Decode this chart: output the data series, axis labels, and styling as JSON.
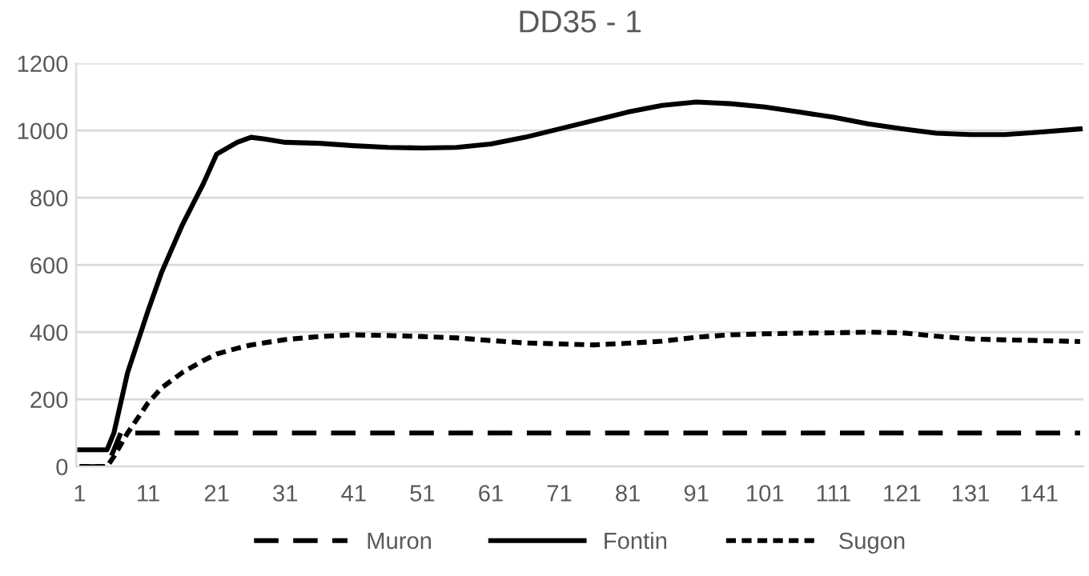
{
  "chart_data": {
    "type": "line",
    "title": "DD35 - 1",
    "xlim": [
      0.5,
      147.5
    ],
    "xticks": [
      1,
      11,
      21,
      31,
      41,
      51,
      61,
      71,
      81,
      91,
      101,
      111,
      121,
      131,
      141
    ],
    "ylim": [
      0,
      1200
    ],
    "yticks": [
      0,
      200,
      400,
      600,
      800,
      1000,
      1200
    ],
    "grid": "y",
    "legend": "bottom",
    "marker": "none",
    "series": [
      {
        "name": "Muron",
        "color": "#000000",
        "line_style": "dashed",
        "x": [
          1,
          5,
          7,
          147
        ],
        "values": [
          0,
          0,
          100,
          100
        ]
      },
      {
        "name": "Fontin",
        "color": "#000000",
        "line_style": "solid",
        "x": [
          1,
          5,
          6,
          8,
          11,
          13,
          16,
          19,
          21,
          24,
          26,
          28,
          31,
          36,
          41,
          46,
          51,
          56,
          61,
          66,
          71,
          76,
          81,
          86,
          91,
          96,
          101,
          106,
          111,
          116,
          121,
          126,
          131,
          136,
          141,
          147
        ],
        "values": [
          50,
          50,
          100,
          280,
          465,
          580,
          720,
          840,
          930,
          965,
          980,
          975,
          965,
          962,
          955,
          950,
          948,
          950,
          960,
          980,
          1005,
          1030,
          1055,
          1075,
          1085,
          1080,
          1070,
          1055,
          1040,
          1020,
          1005,
          992,
          988,
          988,
          995,
          1005
        ]
      },
      {
        "name": "Sugon",
        "color": "#000000",
        "line_style": "dotted",
        "x": [
          1,
          5,
          6,
          8,
          11,
          13,
          16,
          19,
          21,
          24,
          26,
          31,
          36,
          41,
          46,
          51,
          56,
          61,
          66,
          71,
          76,
          81,
          86,
          91,
          96,
          101,
          106,
          111,
          116,
          121,
          126,
          131,
          136,
          141,
          147
        ],
        "values": [
          0,
          0,
          30,
          100,
          190,
          235,
          280,
          315,
          335,
          352,
          362,
          378,
          387,
          392,
          390,
          387,
          383,
          375,
          368,
          365,
          362,
          367,
          373,
          385,
          392,
          395,
          397,
          398,
          400,
          398,
          388,
          380,
          377,
          375,
          372
        ]
      }
    ]
  }
}
